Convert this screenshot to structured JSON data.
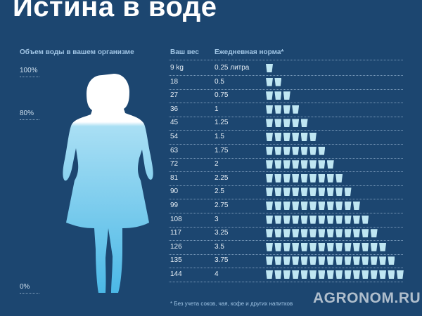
{
  "title": "Истина в воде",
  "left_header": "Объем воды в вашем организме",
  "percent_labels": [
    "100%",
    "80%",
    "0%"
  ],
  "table": {
    "headers": [
      "Ваш вес",
      "Ежедневная норма*"
    ],
    "rows": [
      {
        "weight": "9 kg",
        "norm": "0.25 литра",
        "glasses": 1
      },
      {
        "weight": "18",
        "norm": "0.5",
        "glasses": 2
      },
      {
        "weight": "27",
        "norm": "0.75",
        "glasses": 3
      },
      {
        "weight": "36",
        "norm": "1",
        "glasses": 4
      },
      {
        "weight": "45",
        "norm": "1.25",
        "glasses": 5
      },
      {
        "weight": "54",
        "norm": "1.5",
        "glasses": 6
      },
      {
        "weight": "63",
        "norm": "1.75",
        "glasses": 7
      },
      {
        "weight": "72",
        "norm": "2",
        "glasses": 8
      },
      {
        "weight": "81",
        "norm": "2.25",
        "glasses": 9
      },
      {
        "weight": "90",
        "norm": "2.5",
        "glasses": 10
      },
      {
        "weight": "99",
        "norm": "2.75",
        "glasses": 11
      },
      {
        "weight": "108",
        "norm": "3",
        "glasses": 12
      },
      {
        "weight": "117",
        "norm": "3.25",
        "glasses": 13
      },
      {
        "weight": "126",
        "norm": "3.5",
        "glasses": 14
      },
      {
        "weight": "135",
        "norm": "3.75",
        "glasses": 15
      },
      {
        "weight": "144",
        "norm": "4",
        "glasses": 16
      }
    ]
  },
  "footnote": "* Без учета соков, чая, кофе и других напитков",
  "watermark": "AGRONOM.RU"
}
